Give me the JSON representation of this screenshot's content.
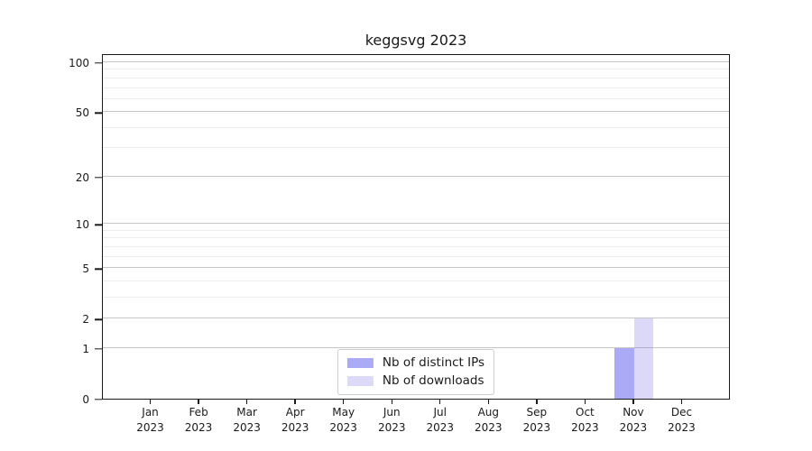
{
  "chart_data": {
    "type": "bar",
    "title": "keggsvg 2023",
    "categories": [
      "Jan 2023",
      "Feb 2023",
      "Mar 2023",
      "Apr 2023",
      "May 2023",
      "Jun 2023",
      "Jul 2023",
      "Aug 2023",
      "Sep 2023",
      "Oct 2023",
      "Nov 2023",
      "Dec 2023"
    ],
    "series": [
      {
        "name": "Nb of distinct IPs",
        "color": "#abaaf7",
        "fill": "rgba(87,85,239,0.5)",
        "values": [
          0,
          0,
          0,
          0,
          0,
          0,
          0,
          0,
          0,
          0,
          1,
          0
        ]
      },
      {
        "name": "Nb of downloads",
        "color": "#dcdaf8",
        "fill": "rgba(115,105,227,0.25)",
        "values": [
          0,
          0,
          0,
          0,
          0,
          0,
          0,
          0,
          0,
          0,
          2,
          0
        ]
      }
    ],
    "xlabel": "",
    "ylabel": "",
    "yscale": "log1p",
    "ylim": [
      0,
      100
    ],
    "y_major_ticks": [
      0,
      1,
      2,
      5,
      10,
      20,
      50,
      100
    ],
    "y_minor_gridlines": [
      3,
      4,
      6,
      7,
      8,
      9,
      30,
      40,
      60,
      70,
      80,
      90
    ],
    "grid": "horizontal, major and minor",
    "legend_position": "lower center"
  },
  "colors": {
    "background": "#ffffff",
    "axis": "#1a1a1a",
    "text": "#1a1a1a",
    "major_grid": "#c6c6c6",
    "minor_grid": "#ececec",
    "legend_border": "#cccccc",
    "legend_background": "#ffffff"
  }
}
